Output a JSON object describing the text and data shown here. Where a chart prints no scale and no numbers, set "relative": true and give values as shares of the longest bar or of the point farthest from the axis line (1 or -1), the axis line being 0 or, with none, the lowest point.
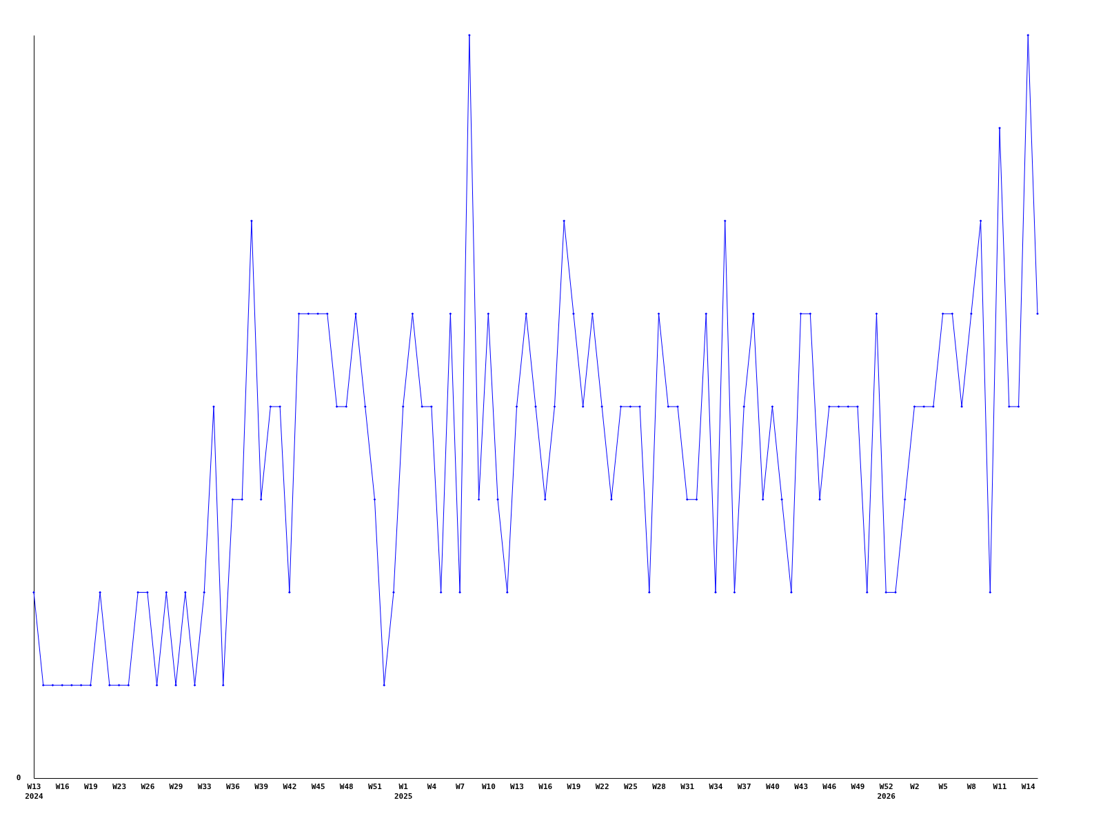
{
  "chart_data": {
    "type": "line",
    "relative": true,
    "marker": "diamond",
    "line_style": "solid",
    "annotations": [
      "0"
    ],
    "categories": [
      "W13\n2024",
      null,
      null,
      "W16",
      null,
      null,
      "W19",
      null,
      null,
      "W23",
      null,
      null,
      "W26",
      null,
      null,
      "W29",
      null,
      null,
      "W33",
      null,
      null,
      "W36",
      null,
      null,
      "W39",
      null,
      null,
      "W42",
      null,
      null,
      "W45",
      null,
      null,
      "W48",
      null,
      null,
      "W51",
      null,
      null,
      "W1\n2025",
      null,
      null,
      "W4",
      null,
      null,
      "W7",
      null,
      null,
      "W10",
      null,
      null,
      "W13",
      null,
      null,
      "W16",
      null,
      null,
      "W19",
      null,
      null,
      "W22",
      null,
      null,
      "W25",
      null,
      null,
      "W28",
      null,
      null,
      "W31",
      null,
      null,
      "W34",
      null,
      null,
      "W37",
      null,
      null,
      "W40",
      null,
      null,
      "W43",
      null,
      null,
      "W46",
      null,
      null,
      "W49",
      null,
      null,
      "W52\n2026",
      null,
      null,
      "W2",
      null,
      null,
      "W5",
      null,
      null,
      "W8",
      null,
      null,
      "W11",
      null,
      null,
      "W14",
      null
    ],
    "series": [
      {
        "color": "#0000ff",
        "values": [
          0.25,
          0.125,
          0.125,
          0.125,
          0.125,
          0.125,
          0.125,
          0.25,
          0.125,
          0.125,
          0.125,
          0.25,
          0.25,
          0.125,
          0.25,
          0.125,
          0.25,
          0.125,
          0.25,
          0.5,
          0.125,
          0.375,
          0.375,
          0.75,
          0.375,
          0.5,
          0.5,
          0.25,
          0.625,
          0.625,
          0.625,
          0.625,
          0.5,
          0.5,
          0.625,
          0.5,
          0.375,
          0.125,
          0.25,
          0.5,
          0.625,
          0.5,
          0.5,
          0.25,
          0.625,
          0.25,
          1,
          0.375,
          0.625,
          0.375,
          0.25,
          0.5,
          0.625,
          0.5,
          0.375,
          0.5,
          0.75,
          0.625,
          0.5,
          0.625,
          0.5,
          0.375,
          0.5,
          0.5,
          0.5,
          0.25,
          0.625,
          0.5,
          0.5,
          0.375,
          0.375,
          0.625,
          0.25,
          0.75,
          0.25,
          0.5,
          0.625,
          0.375,
          0.5,
          0.375,
          0.25,
          0.625,
          0.625,
          0.375,
          0.5,
          0.5,
          0.5,
          0.5,
          0.25,
          0.625,
          0.25,
          0.25,
          0.375,
          0.5,
          0.5,
          0.5,
          0.625,
          0.625,
          0.5,
          0.625,
          0.75,
          0.25,
          0.875,
          0.5,
          0.5,
          1,
          0.625
        ]
      }
    ]
  }
}
